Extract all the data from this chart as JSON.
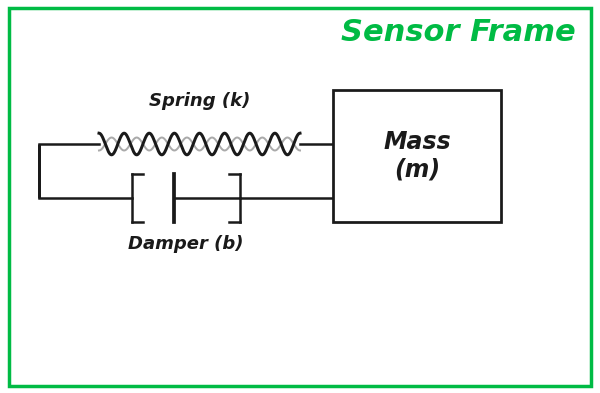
{
  "title": "Sensor Frame",
  "title_color": "#00BB44",
  "title_fontsize": 22,
  "background_color": "#ffffff",
  "border_color": "#00BB44",
  "border_linewidth": 2.5,
  "spring_label": "Spring (k)",
  "damper_label": "Damper (b)",
  "mass_label": "Mass\n(m)",
  "line_color": "#1a1a1a",
  "line_width": 1.8,
  "spring_coils": 8,
  "spring_amplitude": 0.18,
  "figsize": [
    6.0,
    3.93
  ],
  "dpi": 100
}
